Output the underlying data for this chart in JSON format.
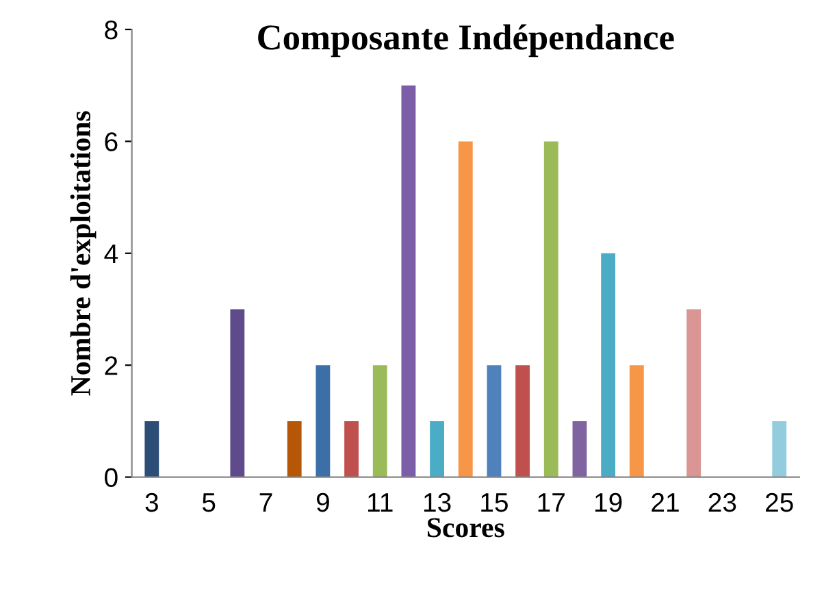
{
  "chart_data": {
    "type": "bar",
    "title": "Composante Indépendance",
    "xlabel": "Scores",
    "ylabel": "Nombre d'exploitations",
    "categories": [
      "3",
      null,
      "5",
      null,
      "7",
      null,
      "9",
      null,
      "11",
      null,
      "13",
      null,
      "15",
      null,
      "17",
      null,
      "19",
      null,
      "21",
      null,
      "23",
      null,
      "25"
    ],
    "values": [
      1,
      0,
      0,
      3,
      0,
      1,
      2,
      1,
      2,
      7,
      1,
      6,
      2,
      2,
      6,
      1,
      4,
      2,
      0,
      3,
      0,
      0,
      1
    ],
    "colors": [
      "#2c4d75",
      "#772c2a",
      "#5f7530",
      "#5f4b8b",
      "#276a7c",
      "#b65708",
      "#3c6fa8",
      "#c0504d",
      "#9bbb59",
      "#7b5ea7",
      "#4bacc6",
      "#f79646",
      "#4f81bd",
      "#c0504d",
      "#9bbb59",
      "#8064a2",
      "#4bacc6",
      "#f79646",
      "#729aca",
      "#d99694",
      "#afc97a",
      "#9983b5",
      "#93cddd"
    ],
    "ylim": [
      0,
      8
    ],
    "yticks": [
      0,
      2,
      4,
      6,
      8
    ],
    "grid": false,
    "legend": false
  }
}
